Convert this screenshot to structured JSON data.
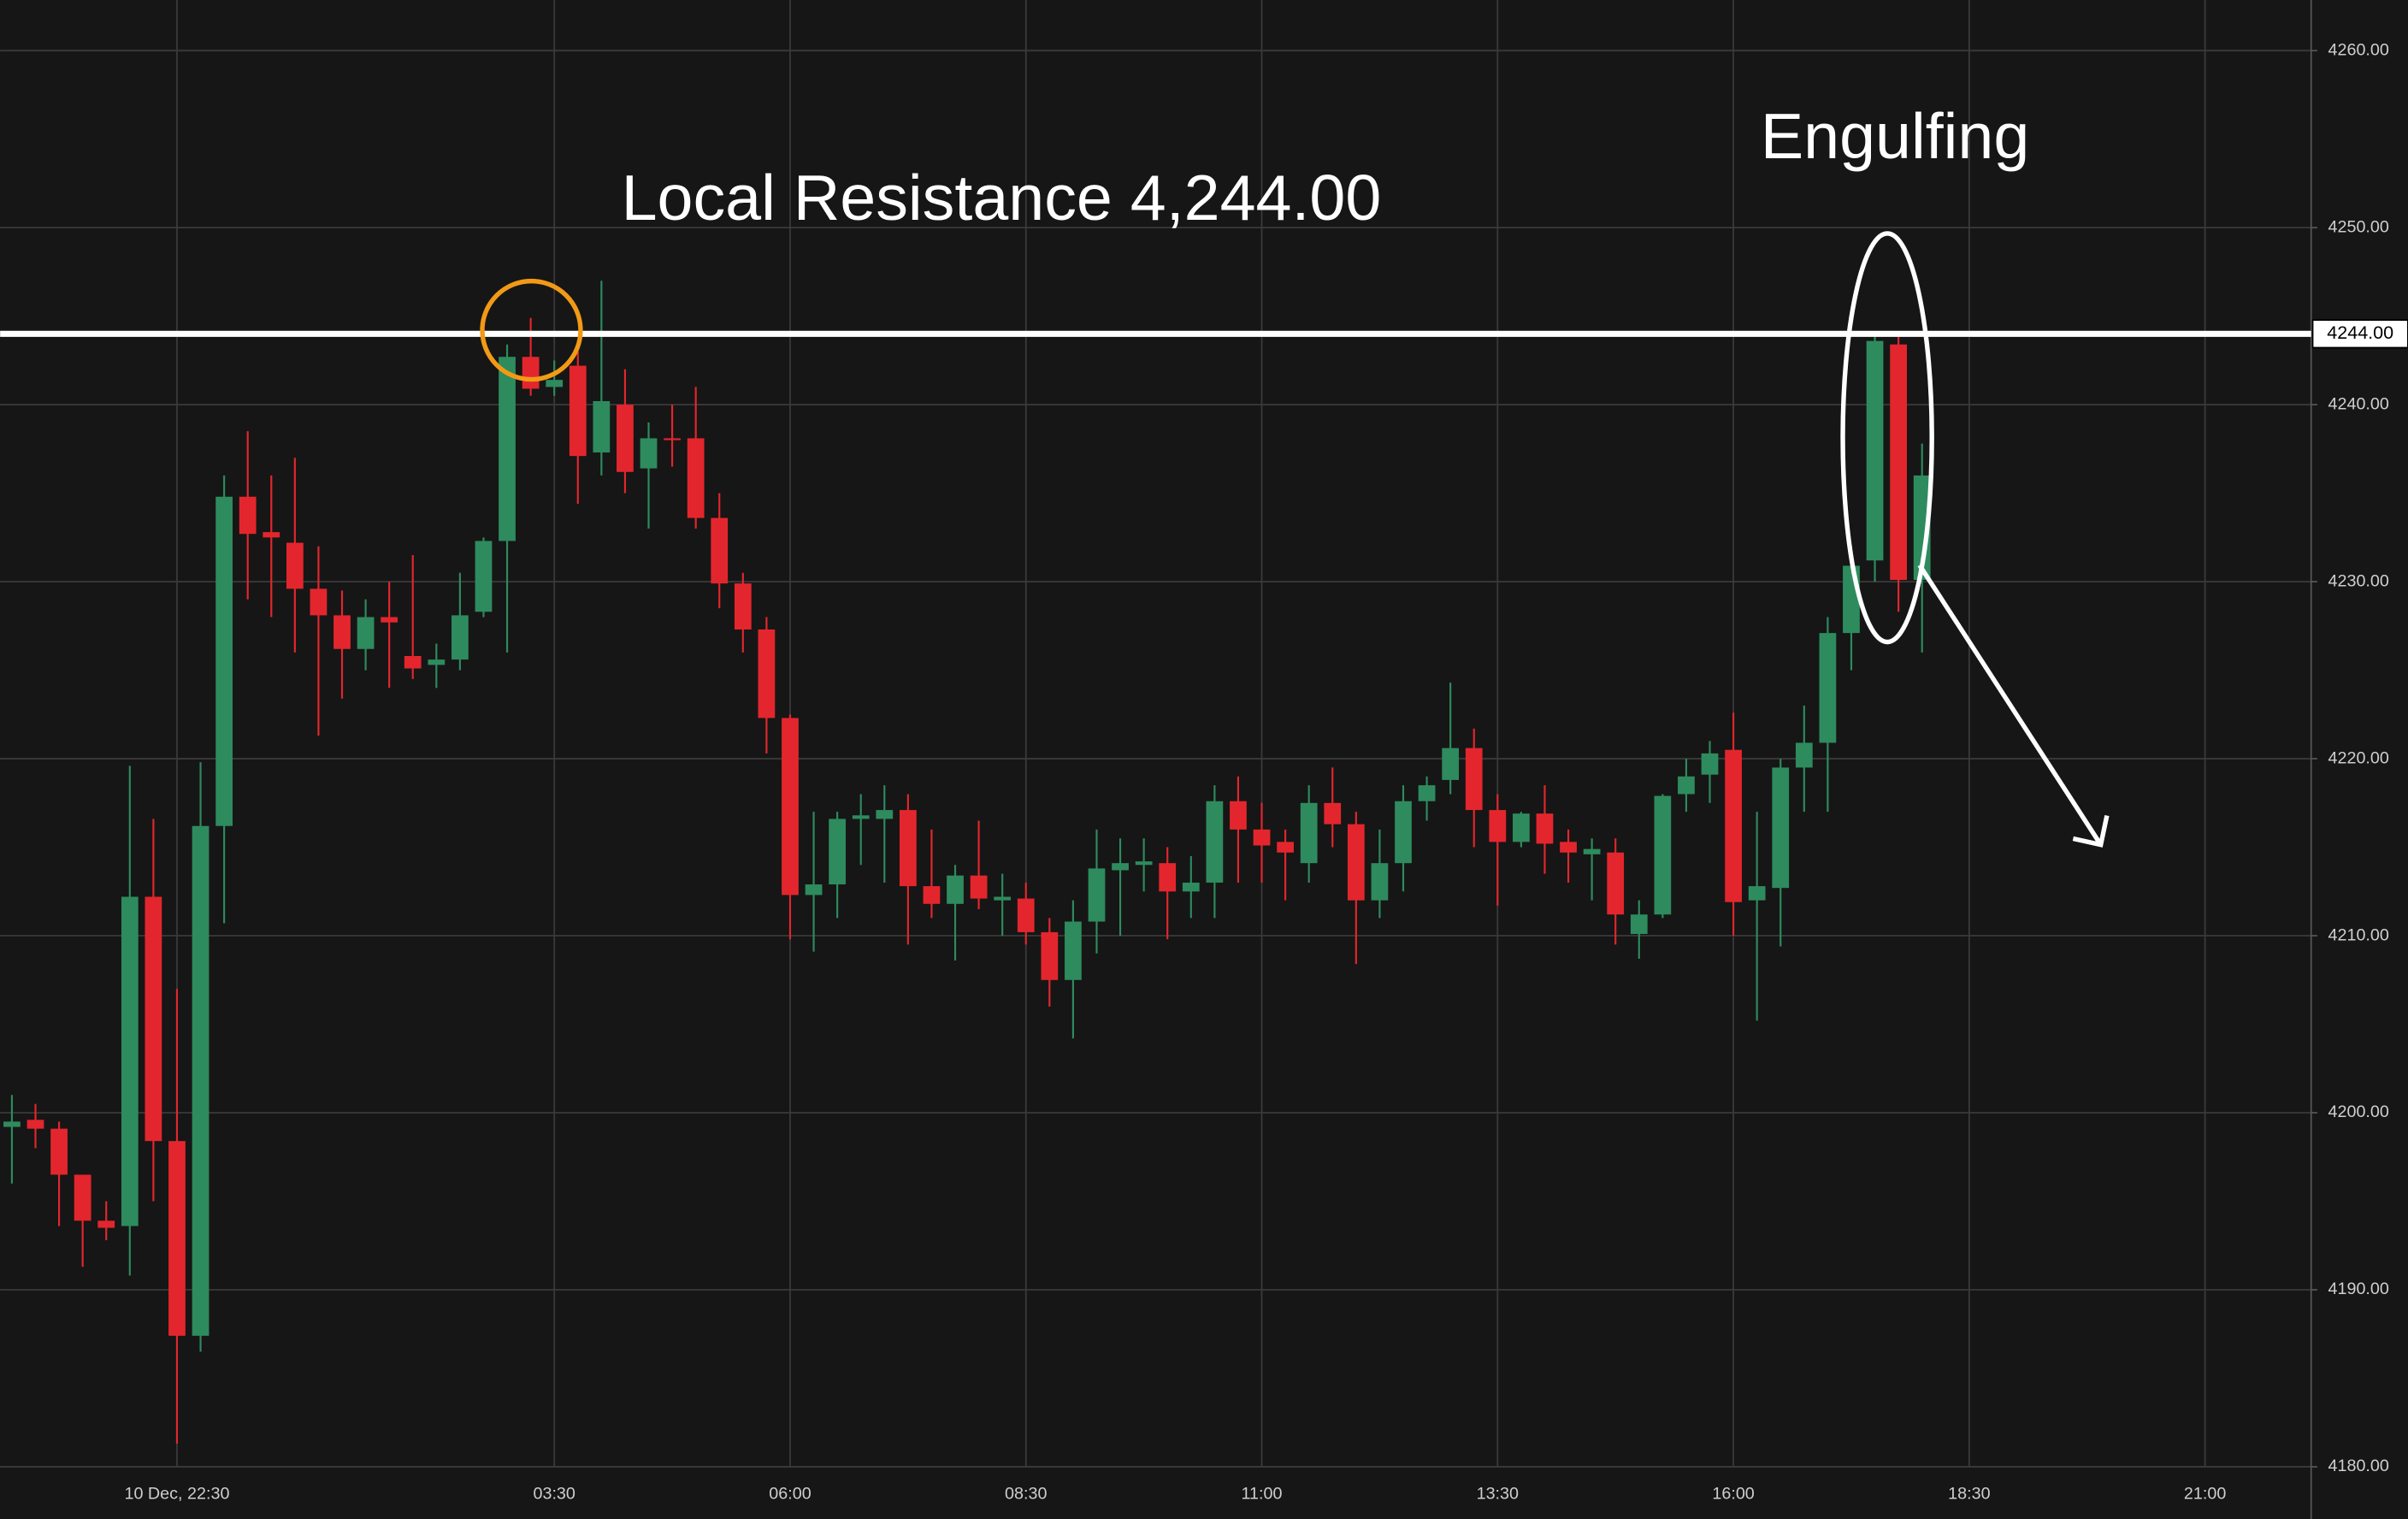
{
  "chart_data": {
    "type": "candlestick",
    "categories": [
      null,
      null,
      null,
      null,
      null,
      null,
      null,
      "10 Dec, 22:30",
      null,
      null,
      null,
      null,
      null,
      null,
      null,
      null,
      null,
      null,
      null,
      null,
      null,
      null,
      null,
      "03:30",
      null,
      null,
      null,
      null,
      null,
      null,
      null,
      null,
      null,
      "06:00",
      null,
      null,
      null,
      null,
      null,
      null,
      null,
      null,
      null,
      "08:30",
      null,
      null,
      null,
      null,
      null,
      null,
      null,
      null,
      null,
      "11:00",
      null,
      null,
      null,
      null,
      null,
      null,
      null,
      null,
      null,
      "13:30",
      null,
      null,
      null,
      null,
      null,
      null,
      null,
      null,
      null,
      "16:00",
      null,
      null,
      null,
      null,
      null,
      null,
      null,
      null,
      null,
      "18:30",
      null,
      null,
      null,
      null,
      null,
      null,
      null,
      null,
      null,
      "21:00",
      null,
      null,
      null,
      null
    ],
    "open": [
      4199.2,
      4199.6,
      4199.1,
      4196.5,
      4193.9,
      4193.6,
      4212.2,
      4198.4,
      4187.4,
      4216.2,
      4234.8,
      4232.8,
      4232.2,
      4229.6,
      4228.1,
      4226.2,
      4228,
      4225.8,
      4225.3,
      4225.6,
      4228.3,
      4232.3,
      4242.7,
      4241,
      4242.2,
      4237.3,
      4240,
      4236.4,
      4238.1,
      4238.1,
      4233.6,
      4229.9,
      4227.3,
      4222.3,
      4212.3,
      4212.9,
      4216.6,
      4216.6,
      4217.1,
      4212.8,
      4211.8,
      4213.4,
      4212,
      4212.1,
      4210.2,
      4207.5,
      4210.8,
      4213.7,
      4214,
      4214.1,
      4212.5,
      4213,
      4217.6,
      4216,
      4215.3,
      4214.1,
      4217.5,
      4216.3,
      4212,
      4214.1,
      4217.6,
      4218.8,
      4220.6,
      4217.1,
      4215.3,
      4216.9,
      4215.3,
      4214.6,
      4214.7,
      4210.1,
      4211.2,
      4218,
      4219.1,
      4220.5,
      4212,
      4212.7,
      4219.5,
      4220.9,
      4227.1,
      4231.2,
      4243.4,
      4230.1,
      null,
      null,
      null,
      null,
      null,
      null,
      null,
      null,
      null,
      null,
      null,
      null,
      null,
      null,
      null,
      null
    ],
    "high": [
      4201,
      4200.5,
      4199.5,
      4196.5,
      4195,
      4219.6,
      4216.6,
      4207,
      4219.8,
      4236,
      4238.5,
      4236,
      4237,
      4232,
      4229.5,
      4229,
      4230,
      4231.5,
      4226.5,
      4230.5,
      4232.5,
      4243.4,
      4244.9,
      4242.5,
      4243,
      4247,
      4242,
      4239,
      4240,
      4241,
      4235,
      4230.5,
      4228,
      4222.5,
      4217,
      4217,
      4218,
      4218.5,
      4218,
      4216,
      4214,
      4216.5,
      4213.5,
      4213,
      4211,
      4212,
      4216,
      4215.5,
      4215.5,
      4215,
      4214.5,
      4218.5,
      4219,
      4217.5,
      4216,
      4218.5,
      4219.5,
      4217,
      4216,
      4218.5,
      4219,
      4224.3,
      4221.7,
      4218,
      4217,
      4218.5,
      4216,
      4215.5,
      4215.5,
      4212,
      4218,
      4220,
      4221,
      4222.6,
      4217,
      4220,
      4223,
      4228,
      4232,
      4244,
      4244,
      4237.8,
      null,
      null,
      null,
      null,
      null,
      null,
      null,
      null,
      null,
      null,
      null,
      null,
      null,
      null,
      null,
      null
    ],
    "low": [
      4196,
      4198,
      4193.6,
      4191.3,
      4192.8,
      4190.8,
      4195,
      4181.3,
      4186.5,
      4210.7,
      4229,
      4228,
      4226,
      4221.3,
      4223.4,
      4225,
      4224,
      4224.5,
      4224,
      4225,
      4228,
      4226,
      4240.5,
      4240.5,
      4234.4,
      4236,
      4235,
      4233,
      4236.5,
      4233,
      4228.5,
      4226,
      4220.3,
      4209.8,
      4209.1,
      4211,
      4214,
      4213,
      4209.5,
      4211,
      4208.6,
      4211.5,
      4210,
      4209.5,
      4206,
      4204.2,
      4209,
      4210,
      4212.5,
      4209.8,
      4211,
      4211,
      4213,
      4213,
      4212,
      4213,
      4215,
      4208.4,
      4211,
      4212.5,
      4216.5,
      4218,
      4215,
      4211.7,
      4215,
      4213.5,
      4213,
      4212,
      4209.5,
      4208.7,
      4211,
      4217,
      4217.5,
      4210,
      4205.2,
      4209.4,
      4217,
      4217,
      4225,
      4230,
      4228.3,
      4226,
      null,
      null,
      null,
      null,
      null,
      null,
      null,
      null,
      null,
      null,
      null,
      null,
      null,
      null,
      null,
      null
    ],
    "close": [
      4199.5,
      4199.1,
      4196.5,
      4193.9,
      4193.5,
      4212.2,
      4198.4,
      4187.4,
      4216.2,
      4234.8,
      4232.7,
      4232.5,
      4229.6,
      4228.1,
      4226.2,
      4228,
      4227.7,
      4225.1,
      4225.6,
      4228.1,
      4232.3,
      4242.7,
      4240.9,
      4241.4,
      4237.1,
      4240.2,
      4236.2,
      4238.1,
      4238,
      4233.6,
      4229.9,
      4227.3,
      4222.3,
      4212.3,
      4212.9,
      4216.6,
      4216.8,
      4217.1,
      4212.8,
      4211.8,
      4213.4,
      4212.1,
      4212.2,
      4210.2,
      4207.5,
      4210.8,
      4213.8,
      4214.1,
      4214.2,
      4212.5,
      4213,
      4217.6,
      4216,
      4215.1,
      4214.7,
      4217.5,
      4216.3,
      4212,
      4214.1,
      4217.6,
      4218.5,
      4220.6,
      4217.1,
      4215.3,
      4216.9,
      4215.2,
      4214.7,
      4214.9,
      4211.2,
      4211.2,
      4217.9,
      4219,
      4220.3,
      4211.9,
      4212.8,
      4219.5,
      4220.9,
      4227.1,
      4230.9,
      4243.6,
      4230.1,
      4236,
      null,
      null,
      null,
      null,
      null,
      null,
      null,
      null,
      null,
      null,
      null,
      null,
      null,
      null,
      null,
      null
    ],
    "up_color": "#2e8b5e",
    "down_color": "#e3262d",
    "ylim": [
      4180,
      4262.86
    ],
    "yticks": [
      {
        "value": 4180,
        "label": "4180.00"
      },
      {
        "value": 4190,
        "label": "4190.00"
      },
      {
        "value": 4200,
        "label": "4200.00"
      },
      {
        "value": 4210,
        "label": "4210.00"
      },
      {
        "value": 4220,
        "label": "4220.00"
      },
      {
        "value": 4230,
        "label": "4230.00"
      },
      {
        "value": 4240,
        "label": "4240.00"
      },
      {
        "value": 4250,
        "label": "4250.00"
      },
      {
        "value": 4260,
        "label": "4260.00"
      }
    ],
    "grid": true,
    "hline": {
      "value": 4244,
      "label": "4244.00",
      "color": "#ffffff"
    },
    "annotations": [
      {
        "text": "Local Resistance 4,244.00"
      },
      {
        "text": "Engulfing"
      }
    ]
  }
}
